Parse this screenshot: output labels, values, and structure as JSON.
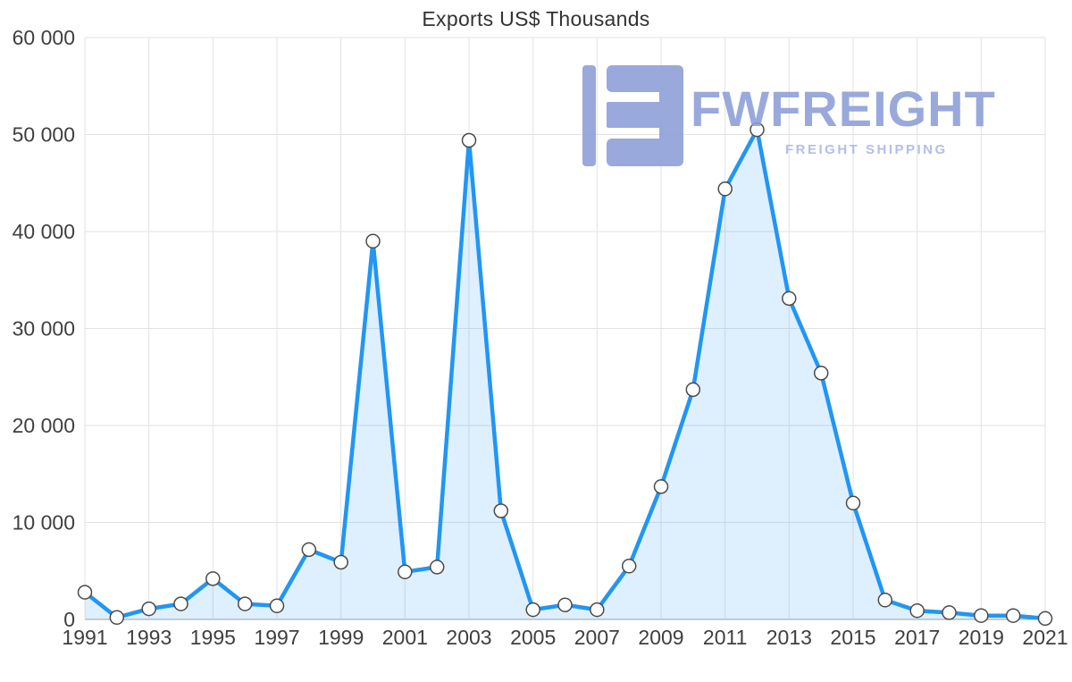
{
  "chart_data": {
    "type": "area",
    "title": "Exports US$ Thousands",
    "x": [
      1991,
      1992,
      1993,
      1994,
      1995,
      1996,
      1997,
      1998,
      1999,
      2000,
      2001,
      2002,
      2003,
      2004,
      2005,
      2006,
      2007,
      2008,
      2009,
      2010,
      2011,
      2012,
      2013,
      2014,
      2015,
      2016,
      2017,
      2018,
      2019,
      2020,
      2021
    ],
    "values": [
      2800,
      200,
      1100,
      1600,
      4200,
      1600,
      1400,
      7200,
      5900,
      39000,
      4900,
      5400,
      49400,
      11200,
      1000,
      1500,
      1000,
      5500,
      13700,
      23700,
      44400,
      50500,
      33100,
      25400,
      12000,
      2000,
      900,
      700,
      400,
      400,
      100
    ],
    "ylim": [
      0,
      60000
    ],
    "y_ticks": [
      0,
      10000,
      20000,
      30000,
      40000,
      50000,
      60000
    ],
    "y_tick_labels": [
      "0",
      "10 000",
      "20 000",
      "30 000",
      "40 000",
      "50 000",
      "60 000"
    ],
    "x_ticks": [
      1991,
      1993,
      1995,
      1997,
      1999,
      2001,
      2003,
      2005,
      2007,
      2009,
      2011,
      2013,
      2015,
      2017,
      2019,
      2021
    ],
    "x_tick_labels": [
      "1991",
      "1993",
      "1995",
      "1997",
      "1999",
      "2001",
      "2003",
      "2005",
      "2007",
      "2009",
      "2011",
      "2013",
      "2015",
      "2017",
      "2019",
      "2021"
    ],
    "grid": true,
    "legend": "none",
    "xlabel": "",
    "ylabel": "",
    "colors": {
      "line": "#2196f3",
      "fill": "rgba(33,150,243,0.15)",
      "marker_fill": "#ffffff",
      "marker_stroke": "#4a4a4a",
      "grid": "#e2e2e2",
      "axis": "#a0a0a0",
      "tick_text": "#3f3f3f",
      "title_text": "#333333"
    }
  },
  "watermark": {
    "brand": "FWFREIGHT",
    "tagline": "FREIGHT SHIPPING",
    "brand_color": "#8c9ed8",
    "tagline_color": "#a9b6e6"
  }
}
